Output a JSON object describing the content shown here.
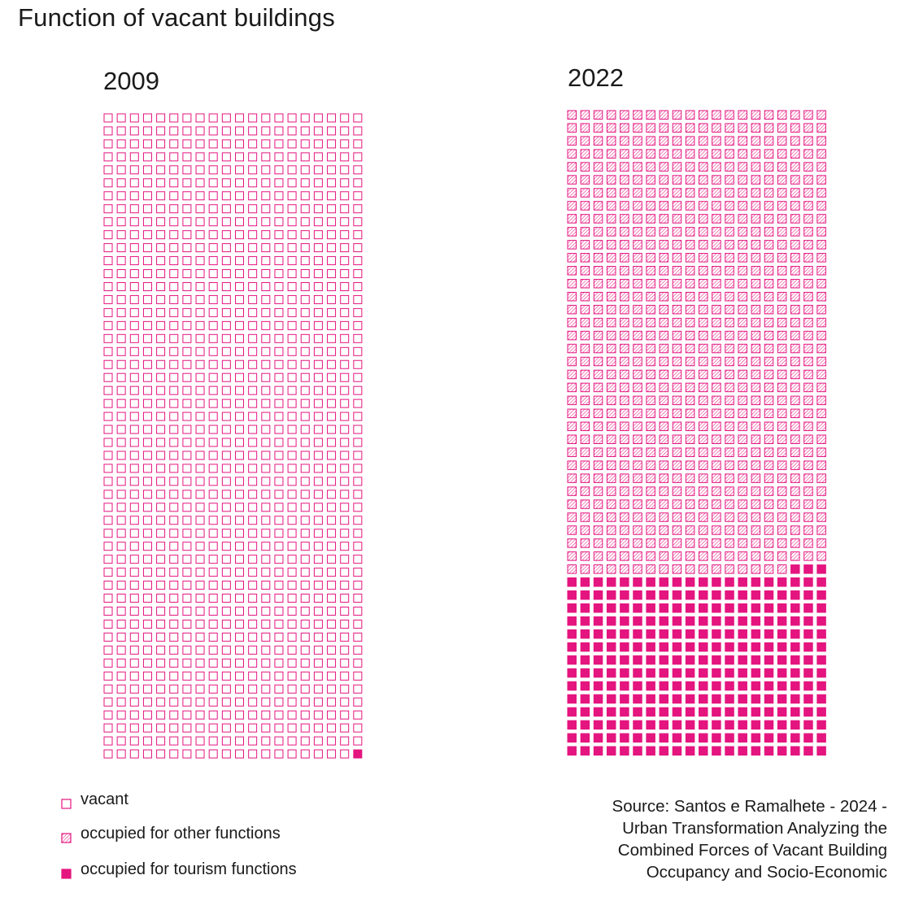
{
  "title": "Function of vacant buildings",
  "colors": {
    "accent": "#e4157f"
  },
  "chart_data": {
    "type": "waffle",
    "title": "Function of vacant buildings",
    "legend": {
      "placement": "bottom-left",
      "items": [
        {
          "key": "vacant",
          "label": "vacant",
          "style": "outline"
        },
        {
          "key": "other",
          "label": "occupied for other functions",
          "style": "hatched"
        },
        {
          "key": "tourism",
          "label": "occupied for tourism functions",
          "style": "filled"
        }
      ]
    },
    "panels": [
      {
        "label": "2009",
        "columns": 20,
        "rows": 50,
        "counts": {
          "vacant": 999,
          "other": 0,
          "tourism": 1
        }
      },
      {
        "label": "2022",
        "columns": 20,
        "rows": 50,
        "counts": {
          "vacant": 0,
          "other": 717,
          "tourism": 283
        }
      }
    ]
  },
  "source": {
    "lines": [
      "Source: Santos e Ramalhete - 2024 -",
      "Urban Transformation Analyzing the",
      "Combined Forces of Vacant Building",
      "Occupancy and Socio-Economic"
    ]
  }
}
